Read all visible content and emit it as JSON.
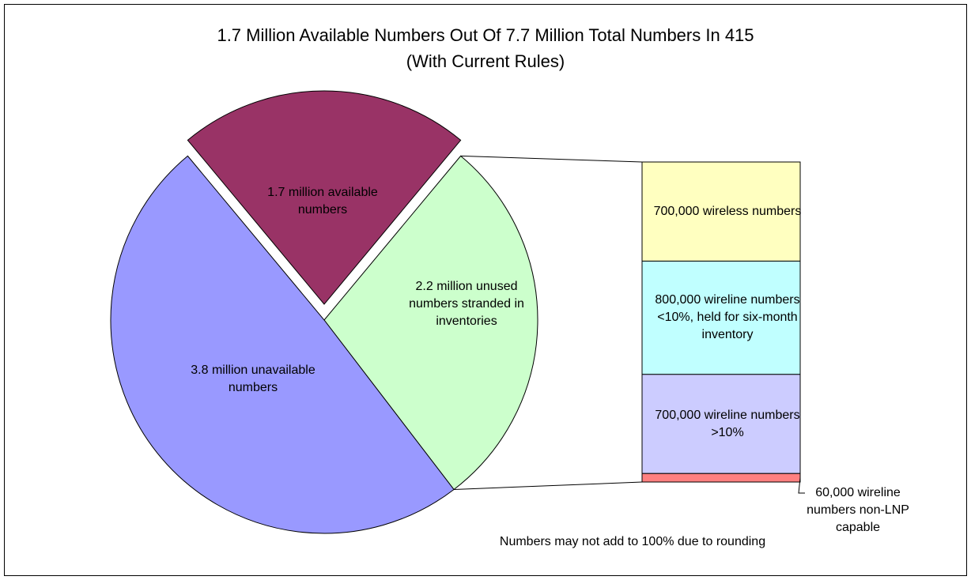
{
  "chart_data": {
    "type": "pie-of-bar",
    "title": "1.7 Million Available Numbers Out Of 7.7 Million Total Numbers In 415 (With Current Rules)",
    "note": "Numbers may not add to 100% due to rounding",
    "pie": {
      "categories": [
        "1.7 million available numbers",
        "2.2 million unused numbers stranded in inventories",
        "3.8 million unavailable numbers"
      ],
      "values": [
        1.7,
        2.2,
        3.8
      ],
      "colors": [
        "#993366",
        "#ccffcc",
        "#9999ff"
      ],
      "exploded": 0
    },
    "bar": {
      "categories": [
        "700,000 wireless numbers",
        "800,000 wireline numbers <10%, held for six-month inventory",
        "700,000 wireline numbers >10%",
        "60,000 wireline numbers non-LNP capable"
      ],
      "values": [
        700000,
        800000,
        700000,
        60000
      ],
      "colors": [
        "#ffffc0",
        "#c0ffff",
        "#ccccff",
        "#ff8080"
      ]
    },
    "expanded_slice": 1
  }
}
